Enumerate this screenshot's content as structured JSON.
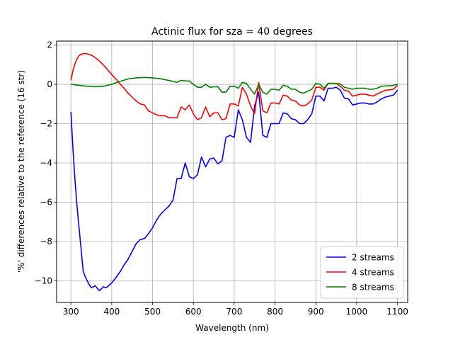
{
  "chart_data": {
    "type": "line",
    "title": "Actinic flux for sza = 40 degrees",
    "xlabel": "Wavelength (nm)",
    "ylabel": "'%' differences relative to the reference (16 str)",
    "xlim": [
      265,
      1125
    ],
    "ylim": [
      -11.1,
      2.2
    ],
    "xticks": [
      300,
      400,
      500,
      600,
      700,
      800,
      900,
      1000,
      1100
    ],
    "yticks": [
      2,
      0,
      -2,
      -4,
      -6,
      -8,
      -10
    ],
    "grid": true,
    "legend_position": "lower-right",
    "series": [
      {
        "name": "2 streams",
        "color": "#0000ff",
        "x": [
          300,
          305,
          310,
          315,
          320,
          325,
          330,
          335,
          340,
          345,
          350,
          355,
          360,
          365,
          370,
          375,
          380,
          385,
          390,
          395,
          400,
          410,
          420,
          430,
          440,
          450,
          460,
          470,
          480,
          490,
          500,
          510,
          520,
          530,
          540,
          550,
          560,
          570,
          580,
          590,
          600,
          610,
          620,
          630,
          640,
          650,
          660,
          670,
          680,
          690,
          700,
          710,
          720,
          730,
          740,
          750,
          760,
          770,
          780,
          790,
          800,
          810,
          820,
          830,
          840,
          850,
          860,
          870,
          880,
          890,
          900,
          910,
          920,
          930,
          940,
          950,
          960,
          970,
          980,
          990,
          1000,
          1010,
          1020,
          1030,
          1040,
          1050,
          1060,
          1070,
          1080,
          1090,
          1100
        ],
        "y": [
          -1.4,
          -3.3,
          -4.9,
          -6.2,
          -7.3,
          -8.4,
          -9.5,
          -9.8,
          -10.0,
          -10.2,
          -10.35,
          -10.3,
          -10.25,
          -10.4,
          -10.5,
          -10.4,
          -10.3,
          -10.35,
          -10.3,
          -10.2,
          -10.1,
          -9.85,
          -9.55,
          -9.2,
          -8.9,
          -8.5,
          -8.1,
          -7.9,
          -7.85,
          -7.6,
          -7.3,
          -6.9,
          -6.6,
          -6.4,
          -6.2,
          -5.9,
          -4.8,
          -4.8,
          -4.0,
          -4.7,
          -4.8,
          -4.6,
          -3.7,
          -4.2,
          -3.8,
          -3.75,
          -4.05,
          -3.9,
          -2.7,
          -2.6,
          -2.7,
          -1.3,
          -1.8,
          -2.7,
          -2.95,
          -1.1,
          -0.4,
          -2.6,
          -2.7,
          -2.0,
          -2.0,
          -2.0,
          -1.45,
          -1.5,
          -1.75,
          -1.8,
          -2.0,
          -2.0,
          -1.8,
          -1.5,
          -0.6,
          -0.6,
          -0.85,
          -0.2,
          -0.2,
          -0.15,
          -0.3,
          -0.7,
          -0.75,
          -1.05,
          -1.0,
          -0.95,
          -0.95,
          -1.0,
          -1.0,
          -0.9,
          -0.75,
          -0.65,
          -0.6,
          -0.55,
          -0.3
        ]
      },
      {
        "name": "4 streams",
        "color": "#ff0000",
        "x": [
          300,
          305,
          310,
          315,
          320,
          325,
          330,
          335,
          340,
          345,
          350,
          355,
          360,
          365,
          370,
          375,
          380,
          385,
          390,
          395,
          400,
          410,
          420,
          430,
          440,
          450,
          460,
          470,
          480,
          490,
          500,
          510,
          520,
          530,
          540,
          550,
          560,
          570,
          580,
          590,
          600,
          610,
          620,
          630,
          640,
          650,
          660,
          670,
          680,
          690,
          700,
          710,
          720,
          730,
          740,
          750,
          760,
          770,
          780,
          790,
          800,
          810,
          820,
          830,
          840,
          850,
          860,
          870,
          880,
          890,
          900,
          910,
          920,
          930,
          940,
          950,
          960,
          970,
          980,
          990,
          1000,
          1010,
          1020,
          1030,
          1040,
          1050,
          1060,
          1070,
          1080,
          1090,
          1100
        ],
        "y": [
          0.2,
          0.7,
          1.05,
          1.3,
          1.45,
          1.53,
          1.56,
          1.57,
          1.55,
          1.52,
          1.48,
          1.42,
          1.35,
          1.27,
          1.18,
          1.08,
          0.97,
          0.86,
          0.74,
          0.62,
          0.5,
          0.27,
          0.03,
          -0.2,
          -0.45,
          -0.65,
          -0.85,
          -1.0,
          -1.05,
          -1.35,
          -1.45,
          -1.55,
          -1.6,
          -1.6,
          -1.7,
          -1.7,
          -1.7,
          -1.15,
          -1.3,
          -1.05,
          -1.5,
          -1.8,
          -1.7,
          -1.15,
          -1.65,
          -1.45,
          -1.45,
          -1.8,
          -1.75,
          -1.0,
          -1.0,
          -1.1,
          -0.15,
          -0.5,
          -1.1,
          -1.5,
          0.1,
          -1.35,
          -1.45,
          -0.95,
          -0.95,
          -1.0,
          -0.55,
          -0.6,
          -0.8,
          -0.85,
          -1.05,
          -1.1,
          -1.0,
          -0.8,
          -0.15,
          -0.15,
          -0.3,
          0.05,
          0.05,
          0.05,
          -0.1,
          -0.3,
          -0.35,
          -0.6,
          -0.55,
          -0.5,
          -0.5,
          -0.55,
          -0.6,
          -0.5,
          -0.4,
          -0.3,
          -0.28,
          -0.25,
          -0.05
        ]
      },
      {
        "name": "8 streams",
        "color": "#008000",
        "x": [
          300,
          320,
          340,
          360,
          380,
          400,
          420,
          440,
          460,
          480,
          500,
          520,
          540,
          560,
          570,
          580,
          590,
          600,
          610,
          620,
          630,
          640,
          650,
          660,
          670,
          680,
          690,
          700,
          710,
          720,
          730,
          740,
          750,
          760,
          770,
          780,
          790,
          800,
          810,
          820,
          830,
          840,
          850,
          860,
          870,
          880,
          890,
          900,
          910,
          920,
          930,
          940,
          950,
          960,
          970,
          980,
          990,
          1000,
          1010,
          1020,
          1030,
          1040,
          1050,
          1060,
          1070,
          1080,
          1090,
          1100
        ],
        "y": [
          0.0,
          -0.05,
          -0.1,
          -0.12,
          -0.1,
          0.0,
          0.15,
          0.27,
          0.33,
          0.35,
          0.33,
          0.28,
          0.2,
          0.1,
          0.2,
          0.17,
          0.17,
          0.0,
          -0.15,
          -0.15,
          0.0,
          -0.15,
          -0.13,
          -0.13,
          -0.4,
          -0.4,
          -0.1,
          -0.1,
          -0.2,
          0.1,
          0.05,
          -0.25,
          -0.5,
          0.0,
          -0.4,
          -0.5,
          -0.25,
          -0.25,
          -0.3,
          -0.05,
          -0.1,
          -0.25,
          -0.25,
          -0.4,
          -0.45,
          -0.35,
          -0.25,
          0.05,
          0.0,
          -0.2,
          0.05,
          0.05,
          0.05,
          0.02,
          -0.15,
          -0.2,
          -0.25,
          -0.2,
          -0.2,
          -0.2,
          -0.25,
          -0.25,
          -0.2,
          -0.1,
          -0.08,
          -0.08,
          -0.05,
          0.0
        ]
      }
    ]
  }
}
